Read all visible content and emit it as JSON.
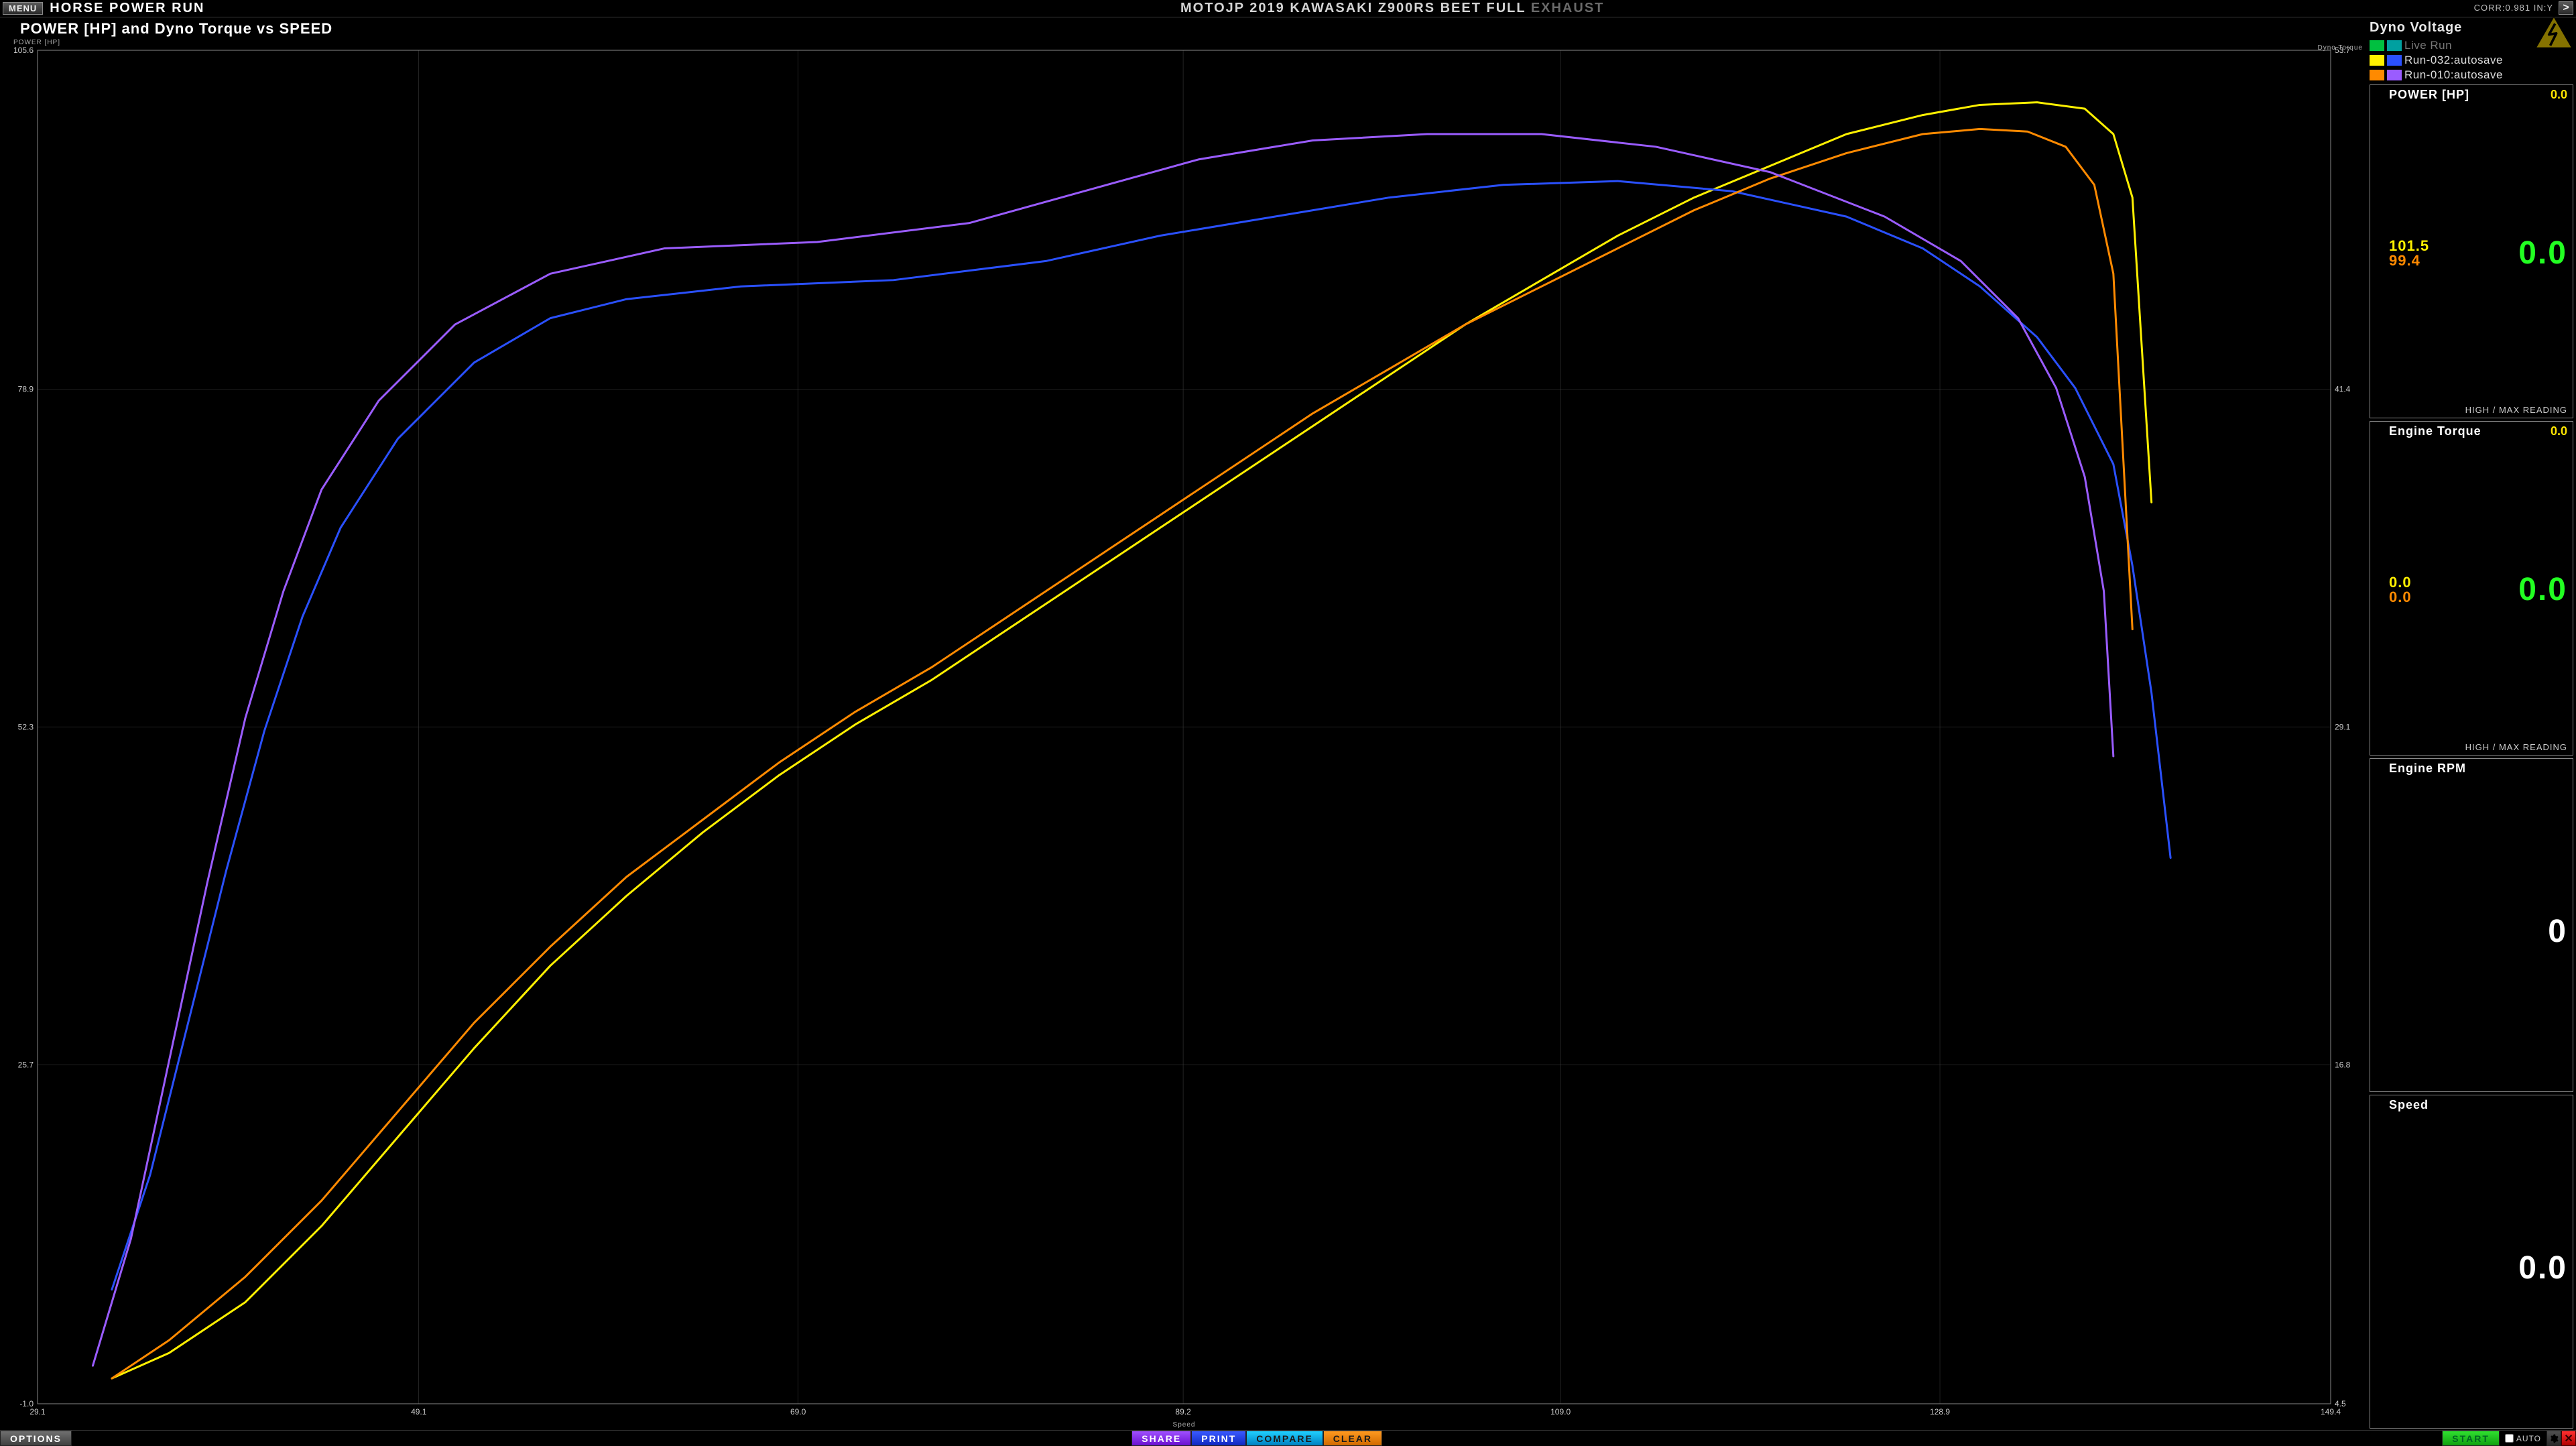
{
  "topbar": {
    "menu_label": "MENU",
    "title": "HORSE POWER RUN",
    "subtitle_main": "MOTOJP 2019 KAWASAKI Z900RS BEET FULL ",
    "subtitle_grey": "EXHAUST",
    "corr": "CORR:0.981 IN:Y",
    "next_label": ">"
  },
  "chart": {
    "title": "POWER [HP] and Dyno Torque vs SPEED",
    "y1_label": "POWER [HP]",
    "y2_label": "Dyno Torque",
    "x_label": "Speed",
    "type": "line",
    "background_color": "#000000",
    "grid_color": "#444444",
    "axis_color": "#888888",
    "tick_color": "#cccccc",
    "tick_fontsize": 12,
    "line_width": 3,
    "xlim": [
      29.1,
      149.4
    ],
    "y1lim": [
      -1.0,
      105.6
    ],
    "y2lim": [
      4.5,
      53.7
    ],
    "xticks": [
      29.1,
      49.1,
      69.0,
      89.2,
      109.0,
      128.9,
      149.4
    ],
    "y1ticks": [
      -1.0,
      25.7,
      52.3,
      78.9,
      105.6
    ],
    "y2ticks": [
      4.5,
      16.8,
      29.1,
      41.4,
      53.7
    ],
    "series": [
      {
        "name": "Run-032 Power",
        "axis": "y1",
        "color": "#fff000",
        "x": [
          33,
          36,
          40,
          44,
          48,
          52,
          56,
          60,
          64,
          68,
          72,
          76,
          80,
          84,
          88,
          92,
          96,
          100,
          104,
          108,
          112,
          116,
          120,
          124,
          128,
          131,
          134,
          136.5,
          138,
          139,
          140
        ],
        "y": [
          1,
          3,
          7,
          13,
          20,
          27,
          33.5,
          39,
          44,
          48.5,
          52.5,
          56,
          60,
          64,
          68,
          72,
          76,
          80,
          84,
          87.5,
          91,
          94,
          96.5,
          99,
          100.5,
          101.3,
          101.5,
          101,
          99,
          94,
          70
        ]
      },
      {
        "name": "Run-032 Torque",
        "axis": "y1",
        "color": "#2a50ff",
        "x": [
          33,
          35,
          37,
          39,
          41,
          43,
          45,
          48,
          52,
          56,
          60,
          66,
          74,
          82,
          88,
          94,
          100,
          106,
          112,
          118,
          124,
          128,
          131,
          134,
          136,
          138,
          139,
          140,
          141
        ],
        "y": [
          8,
          17,
          29,
          41,
          52,
          61,
          68,
          75,
          81,
          84.5,
          86,
          87,
          87.5,
          89,
          91,
          92.5,
          94,
          95,
          95.3,
          94.5,
          92.5,
          90,
          87,
          83,
          79,
          73,
          65,
          55,
          42
        ]
      },
      {
        "name": "Run-010 Power",
        "axis": "y1",
        "color": "#ff8a00",
        "x": [
          33,
          36,
          40,
          44,
          48,
          52,
          56,
          60,
          64,
          68,
          72,
          76,
          80,
          84,
          88,
          92,
          96,
          100,
          104,
          108,
          112,
          116,
          120,
          124,
          128,
          131,
          133.5,
          135.5,
          137,
          138,
          139
        ],
        "y": [
          1,
          4,
          9,
          15,
          22,
          29,
          35,
          40.5,
          45,
          49.5,
          53.5,
          57,
          61,
          65,
          69,
          73,
          77,
          80.5,
          84,
          87,
          90,
          93,
          95.5,
          97.5,
          99,
          99.4,
          99.2,
          98,
          95,
          88,
          60
        ]
      },
      {
        "name": "Run-010 Torque",
        "axis": "y1",
        "color": "#9a5cff",
        "x": [
          32,
          34,
          36,
          38,
          40,
          42,
          44,
          47,
          51,
          56,
          62,
          70,
          78,
          84,
          90,
          96,
          102,
          108,
          114,
          120,
          126,
          130,
          133,
          135,
          136.5,
          137.5,
          138
        ],
        "y": [
          2,
          12,
          26,
          40,
          53,
          63,
          71,
          78,
          84,
          88,
          90,
          90.5,
          92,
          94.5,
          97,
          98.5,
          99,
          99,
          98,
          96,
          92.5,
          89,
          84.5,
          79,
          72,
          63,
          50
        ]
      }
    ]
  },
  "right": {
    "voltage_label": "Dyno Voltage",
    "legend": [
      {
        "colors": [
          "#00c040",
          "#00a0a0"
        ],
        "label": "Live Run",
        "grey": true
      },
      {
        "colors": [
          "#fff000",
          "#2a50ff"
        ],
        "label": "Run-032:autosave",
        "grey": false
      },
      {
        "colors": [
          "#ff8a00",
          "#9a5cff"
        ],
        "label": "Run-010:autosave",
        "grey": false
      }
    ],
    "gauges": [
      {
        "title": "POWER [HP]",
        "live": "0.0",
        "vals": [
          {
            "v": "101.5",
            "c": "#fff000"
          },
          {
            "v": "99.4",
            "c": "#ff8a00"
          }
        ],
        "big": "0.0",
        "big_color": "green",
        "foot": "HIGH / MAX READING"
      },
      {
        "title": "Engine Torque",
        "live": "0.0",
        "vals": [
          {
            "v": "0.0",
            "c": "#fff000"
          },
          {
            "v": "0.0",
            "c": "#ff8a00"
          }
        ],
        "big": "0.0",
        "big_color": "green",
        "foot": "HIGH / MAX READING"
      },
      {
        "title": "Engine RPM",
        "live": "",
        "vals": [],
        "big": "0",
        "big_color": "white",
        "foot": ""
      },
      {
        "title": "Speed",
        "live": "",
        "vals": [],
        "big": "0.0",
        "big_color": "white",
        "foot": ""
      }
    ]
  },
  "bottombar": {
    "options": "OPTIONS",
    "share": "SHARE",
    "print": "PRINT",
    "compare": "COMPARE",
    "clear": "CLEAR",
    "start": "START",
    "auto": "AUTO"
  }
}
